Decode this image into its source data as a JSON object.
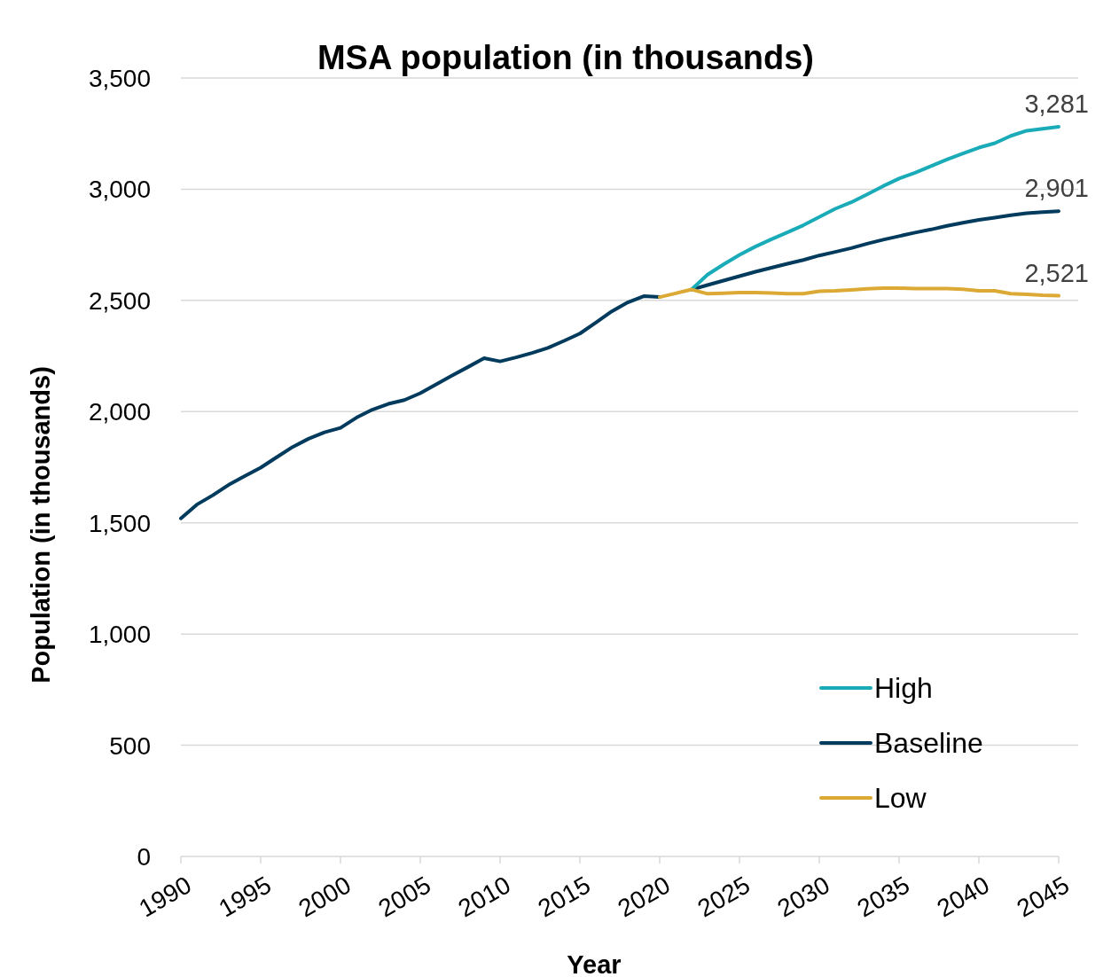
{
  "chart_data": {
    "type": "line",
    "title": "MSA population (in thousands)",
    "xlabel": "Year",
    "ylabel": "Population (in thousands)",
    "xlim": [
      1990,
      2045
    ],
    "xticks": [
      1990,
      1995,
      2000,
      2005,
      2010,
      2015,
      2020,
      2025,
      2030,
      2035,
      2040,
      2045
    ],
    "ylim": [
      0,
      3500
    ],
    "yticks": [
      {
        "value": 0,
        "label": "0"
      },
      {
        "value": 500,
        "label": "500"
      },
      {
        "value": 1000,
        "label": "1,000"
      },
      {
        "value": 1500,
        "label": "1,500"
      },
      {
        "value": 2000,
        "label": "2,000"
      },
      {
        "value": 2500,
        "label": "2,500"
      },
      {
        "value": 3000,
        "label": "3,000"
      },
      {
        "value": 3500,
        "label": "3,500"
      }
    ],
    "grid": "y",
    "legend": "bottom right",
    "line_style": "solid",
    "marker": "none",
    "series": [
      {
        "name": "High",
        "color": "#1aabb8",
        "x": [
          2022,
          2023,
          2024,
          2025,
          2026,
          2027,
          2028,
          2029,
          2030,
          2031,
          2032,
          2033,
          2034,
          2035,
          2036,
          2037,
          2038,
          2039,
          2040,
          2041,
          2042,
          2043,
          2044,
          2045
        ],
        "values": [
          2549,
          2616,
          2662,
          2705,
          2742,
          2775,
          2806,
          2838,
          2875,
          2912,
          2941,
          2977,
          3014,
          3048,
          3074,
          3104,
          3134,
          3161,
          3187,
          3207,
          3240,
          3263,
          3272,
          3281
        ],
        "value_labels": [
          null,
          null,
          null,
          null,
          null,
          null,
          null,
          null,
          null,
          null,
          null,
          null,
          null,
          null,
          null,
          null,
          null,
          null,
          null,
          null,
          null,
          null,
          null,
          "3,281"
        ]
      },
      {
        "name": "Baseline",
        "color": "#003a5d",
        "x": [
          1990,
          1991,
          1992,
          1993,
          1994,
          1995,
          1996,
          1997,
          1998,
          1999,
          2000,
          2001,
          2002,
          2003,
          2004,
          2005,
          2006,
          2007,
          2008,
          2009,
          2010,
          2011,
          2012,
          2013,
          2014,
          2015,
          2016,
          2017,
          2018,
          2019,
          2020,
          2021,
          2022,
          2023,
          2024,
          2025,
          2026,
          2027,
          2028,
          2029,
          2030,
          2031,
          2032,
          2033,
          2034,
          2035,
          2036,
          2037,
          2038,
          2039,
          2040,
          2041,
          2042,
          2043,
          2044,
          2045
        ],
        "values": [
          1520,
          1582,
          1624,
          1671,
          1710,
          1748,
          1795,
          1841,
          1878,
          1907,
          1927,
          1973,
          2009,
          2035,
          2052,
          2083,
          2123,
          2163,
          2201,
          2240,
          2226,
          2244,
          2264,
          2287,
          2318,
          2351,
          2400,
          2451,
          2491,
          2519,
          2515,
          null,
          2549,
          2569,
          2589,
          2609,
          2629,
          2647,
          2665,
          2682,
          2702,
          2718,
          2735,
          2755,
          2773,
          2789,
          2805,
          2819,
          2835,
          2849,
          2862,
          2872,
          2883,
          2892,
          2897,
          2901
        ],
        "value_labels": [
          null,
          null,
          null,
          null,
          null,
          null,
          null,
          null,
          null,
          null,
          null,
          null,
          null,
          null,
          null,
          null,
          null,
          null,
          null,
          null,
          null,
          null,
          null,
          null,
          null,
          null,
          null,
          null,
          null,
          null,
          null,
          null,
          null,
          null,
          null,
          null,
          null,
          null,
          null,
          null,
          null,
          null,
          null,
          null,
          null,
          null,
          null,
          null,
          null,
          null,
          null,
          null,
          null,
          null,
          null,
          "2,901"
        ]
      },
      {
        "name": "Low",
        "color": "#dba934",
        "x": [
          2020,
          2021,
          2022,
          2023,
          2024,
          2025,
          2026,
          2027,
          2028,
          2029,
          2030,
          2031,
          2032,
          2033,
          2034,
          2035,
          2036,
          2037,
          2038,
          2039,
          2040,
          2041,
          2042,
          2043,
          2044,
          2045
        ],
        "values": [
          2515,
          2532,
          2549,
          2530,
          2532,
          2535,
          2535,
          2533,
          2530,
          2530,
          2541,
          2543,
          2547,
          2552,
          2555,
          2555,
          2553,
          2553,
          2553,
          2550,
          2543,
          2543,
          2530,
          2527,
          2523,
          2521
        ],
        "value_labels": [
          null,
          null,
          null,
          null,
          null,
          null,
          null,
          null,
          null,
          null,
          null,
          null,
          null,
          null,
          null,
          null,
          null,
          null,
          null,
          null,
          null,
          null,
          null,
          null,
          null,
          "2,521"
        ]
      }
    ]
  }
}
